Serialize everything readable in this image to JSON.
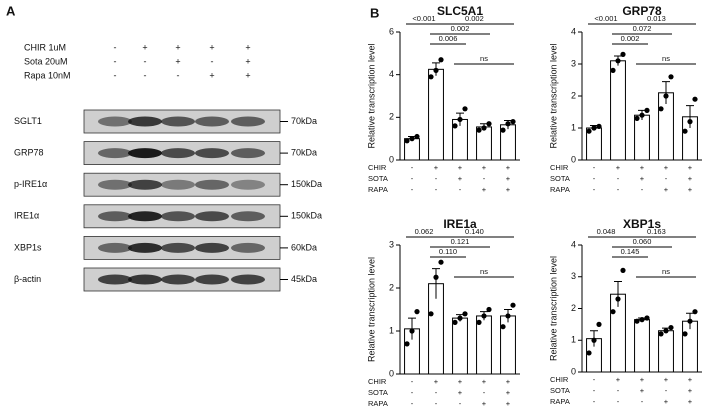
{
  "panel_a": {
    "label": "A",
    "treatments": [
      {
        "name": "CHIR  1uM",
        "signs": [
          "-",
          "+",
          "+",
          "+",
          "+"
        ]
      },
      {
        "name": "Sota  20uM",
        "signs": [
          "-",
          "-",
          "+",
          "-",
          "+"
        ]
      },
      {
        "name": "Rapa 10nM",
        "signs": [
          "-",
          "-",
          "-",
          "+",
          "+"
        ]
      }
    ],
    "blots": [
      {
        "protein": "SGLT1",
        "size": "70kDa"
      },
      {
        "protein": "GRP78",
        "size": "70kDa"
      },
      {
        "protein": "p-IRE1α",
        "size": "150kDa"
      },
      {
        "protein": "IRE1α",
        "size": "150kDa"
      },
      {
        "protein": "XBP1s",
        "size": "60kDa"
      },
      {
        "protein": "β-actin",
        "size": "45kDa"
      }
    ]
  },
  "panel_b": {
    "label": "B"
  },
  "chart_data": [
    {
      "type": "bar",
      "title": "SLC5A1",
      "y_label": "Relative transcription level",
      "color": "#ffffff",
      "treatments": [
        {
          "name": "CHIR",
          "signs": [
            "-",
            "+",
            "+",
            "+",
            "+"
          ]
        },
        {
          "name": "SOTA",
          "signs": [
            "-",
            "-",
            "+",
            "-",
            "+"
          ]
        },
        {
          "name": "RAPA",
          "signs": [
            "-",
            "-",
            "-",
            "+",
            "+"
          ]
        }
      ],
      "values": [
        1.0,
        4.25,
        1.9,
        1.55,
        1.65
      ],
      "errors": [
        0.1,
        0.3,
        0.3,
        0.15,
        0.2
      ],
      "points": [
        [
          0.9,
          1.0,
          1.1
        ],
        [
          3.9,
          4.2,
          4.7
        ],
        [
          1.6,
          1.9,
          2.4
        ],
        [
          1.4,
          1.5,
          1.7
        ],
        [
          1.4,
          1.7,
          1.8
        ]
      ],
      "ylim": [
        0,
        6
      ],
      "yticks": [
        0,
        2,
        4,
        6
      ],
      "brackets": [
        {
          "from": 0,
          "to": 1,
          "label": "<0.001"
        },
        {
          "from": 1,
          "to": 4,
          "label": "0.002"
        },
        {
          "from": 1,
          "to": 2,
          "label": "0.006"
        },
        {
          "from": 1,
          "to": 3,
          "label": "0.002"
        },
        {
          "from": 2,
          "to": 4,
          "label": "ns"
        }
      ]
    },
    {
      "type": "bar",
      "title": "GRP78",
      "y_label": "Relative transcription level",
      "color": "#ffffff",
      "treatments": [
        {
          "name": "CHIR",
          "signs": [
            "-",
            "+",
            "+",
            "+",
            "+"
          ]
        },
        {
          "name": "SOTA",
          "signs": [
            "-",
            "-",
            "+",
            "-",
            "+"
          ]
        },
        {
          "name": "RAPA",
          "signs": [
            "-",
            "-",
            "-",
            "+",
            "+"
          ]
        }
      ],
      "values": [
        1.0,
        3.1,
        1.4,
        2.1,
        1.35
      ],
      "errors": [
        0.08,
        0.15,
        0.15,
        0.35,
        0.35
      ],
      "points": [
        [
          0.9,
          1.0,
          1.05
        ],
        [
          2.8,
          3.1,
          3.3
        ],
        [
          1.3,
          1.4,
          1.55
        ],
        [
          1.6,
          2.0,
          2.6
        ],
        [
          0.9,
          1.2,
          1.9
        ]
      ],
      "ylim": [
        0,
        4
      ],
      "yticks": [
        0,
        1,
        2,
        3,
        4
      ],
      "brackets": [
        {
          "from": 0,
          "to": 1,
          "label": "<0.001"
        },
        {
          "from": 1,
          "to": 4,
          "label": "0.013"
        },
        {
          "from": 1,
          "to": 2,
          "label": "0.002"
        },
        {
          "from": 1,
          "to": 3,
          "label": "0.072"
        },
        {
          "from": 2,
          "to": 4,
          "label": "ns"
        }
      ]
    },
    {
      "type": "bar",
      "title": "IRE1a",
      "y_label": "Relative transcription level",
      "color": "#ffffff",
      "treatments": [
        {
          "name": "CHIR",
          "signs": [
            "-",
            "+",
            "+",
            "+",
            "+"
          ]
        },
        {
          "name": "SOTA",
          "signs": [
            "-",
            "-",
            "+",
            "-",
            "+"
          ]
        },
        {
          "name": "RAPA",
          "signs": [
            "-",
            "-",
            "-",
            "+",
            "+"
          ]
        }
      ],
      "values": [
        1.05,
        2.1,
        1.3,
        1.35,
        1.35
      ],
      "errors": [
        0.25,
        0.35,
        0.08,
        0.1,
        0.15
      ],
      "points": [
        [
          0.7,
          1.0,
          1.45
        ],
        [
          1.4,
          2.25,
          2.6
        ],
        [
          1.2,
          1.3,
          1.4
        ],
        [
          1.2,
          1.35,
          1.5
        ],
        [
          1.1,
          1.35,
          1.6
        ]
      ],
      "ylim": [
        0,
        3
      ],
      "yticks": [
        0,
        1,
        2,
        3
      ],
      "brackets": [
        {
          "from": 0,
          "to": 1,
          "label": "0.062"
        },
        {
          "from": 1,
          "to": 4,
          "label": "0.140"
        },
        {
          "from": 1,
          "to": 2,
          "label": "0.110"
        },
        {
          "from": 1,
          "to": 3,
          "label": "0.121"
        },
        {
          "from": 2,
          "to": 4,
          "label": "ns"
        }
      ]
    },
    {
      "type": "bar",
      "title": "XBP1s",
      "y_label": "Relative transcription level",
      "color": "#ffffff",
      "treatments": [
        {
          "name": "CHIR",
          "signs": [
            "-",
            "+",
            "+",
            "+",
            "+"
          ]
        },
        {
          "name": "SOTA",
          "signs": [
            "-",
            "-",
            "+",
            "-",
            "+"
          ]
        },
        {
          "name": "RAPA",
          "signs": [
            "-",
            "-",
            "-",
            "+",
            "+"
          ]
        }
      ],
      "values": [
        1.05,
        2.45,
        1.65,
        1.3,
        1.6
      ],
      "errors": [
        0.25,
        0.4,
        0.05,
        0.08,
        0.25
      ],
      "points": [
        [
          0.6,
          1.0,
          1.5
        ],
        [
          1.9,
          2.3,
          3.2
        ],
        [
          1.6,
          1.65,
          1.7
        ],
        [
          1.2,
          1.3,
          1.4
        ],
        [
          1.2,
          1.6,
          1.9
        ]
      ],
      "ylim": [
        0,
        4
      ],
      "yticks": [
        0,
        1,
        2,
        3,
        4
      ],
      "brackets": [
        {
          "from": 0,
          "to": 1,
          "label": "0.048"
        },
        {
          "from": 1,
          "to": 4,
          "label": "0.163"
        },
        {
          "from": 1,
          "to": 2,
          "label": "0.145"
        },
        {
          "from": 1,
          "to": 3,
          "label": "0.060"
        },
        {
          "from": 2,
          "to": 4,
          "label": "ns"
        }
      ]
    }
  ]
}
